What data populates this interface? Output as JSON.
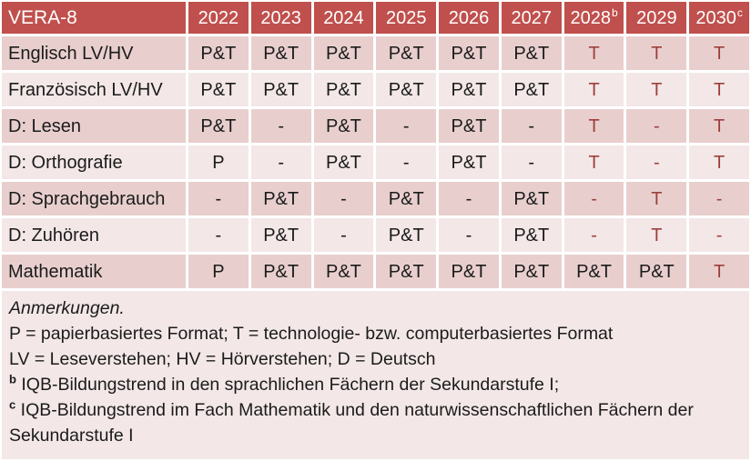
{
  "colors": {
    "header_bg": "#c0504d",
    "band_dark": "#e8cfce",
    "band_light": "#f3e7e7",
    "tech_red": "#9e3f3d",
    "header_text": "#ffffff",
    "cell_text": "#1b1b1b"
  },
  "table": {
    "title_cell": "VERA-8",
    "columns": [
      {
        "label": "2022",
        "sup": ""
      },
      {
        "label": "2023",
        "sup": ""
      },
      {
        "label": "2024",
        "sup": ""
      },
      {
        "label": "2025",
        "sup": ""
      },
      {
        "label": "2026",
        "sup": ""
      },
      {
        "label": "2027",
        "sup": ""
      },
      {
        "label": "2028",
        "sup": "b"
      },
      {
        "label": "2029",
        "sup": ""
      },
      {
        "label": "2030",
        "sup": "c"
      }
    ],
    "rows": [
      {
        "label": "Englisch LV/HV",
        "values": [
          "P&T",
          "P&T",
          "P&T",
          "P&T",
          "P&T",
          "P&T",
          "T",
          "T",
          "T"
        ]
      },
      {
        "label": "Französisch LV/HV",
        "values": [
          "P&T",
          "P&T",
          "P&T",
          "P&T",
          "P&T",
          "P&T",
          "T",
          "T",
          "T"
        ]
      },
      {
        "label": "D: Lesen",
        "values": [
          "P&T",
          "-",
          "P&T",
          "-",
          "P&T",
          "-",
          "T",
          "-",
          "T"
        ]
      },
      {
        "label": "D: Orthografie",
        "values": [
          "P",
          "-",
          "P&T",
          "-",
          "P&T",
          "-",
          "T",
          "-",
          "T"
        ]
      },
      {
        "label": "D: Sprachgebrauch",
        "values": [
          "-",
          "P&T",
          "-",
          "P&T",
          "-",
          "P&T",
          "-",
          "T",
          "-"
        ]
      },
      {
        "label": "D: Zuhören",
        "values": [
          "-",
          "P&T",
          "-",
          "P&T",
          "-",
          "P&T",
          "-",
          "T",
          "-"
        ]
      },
      {
        "label": "Mathematik",
        "values": [
          "P",
          "P&T",
          "P&T",
          "P&T",
          "P&T",
          "P&T",
          "P&T",
          "P&T",
          "T"
        ]
      }
    ]
  },
  "notes": {
    "title": "Anmerkungen.",
    "formats_line": "P = papierbasiertes Format; T = technologie- bzw. computerbasiertes Format",
    "abbrev_line": "LV = Leseverstehen; HV = Hörverstehen; D = Deutsch",
    "note_b": {
      "sup": "b",
      "text": "IQB-Bildungstrend in den sprachlichen Fächern der Sekundarstufe I;"
    },
    "note_c": {
      "sup": "c",
      "text": "IQB-Bildungstrend im Fach Mathematik und den naturwissenschaftlichen Fächern der Sekundarstufe I"
    }
  }
}
